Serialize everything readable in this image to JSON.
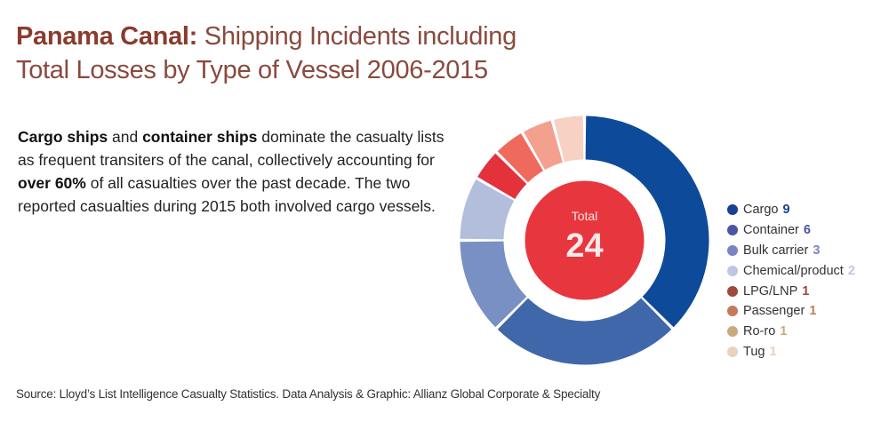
{
  "title": {
    "bold": "Panama Canal:",
    "line1_rest": " Shipping Incidents including",
    "line2": "Total Losses by Type of Vessel 2006-2015"
  },
  "body": {
    "b1": "Cargo ships",
    "t1": " and ",
    "b2": "container ships",
    "t2": " dominate the casualty lists as frequent transiters of the canal, collectively accounting for ",
    "b3": "over 60%",
    "t3": " of all casualties over the past decade. The two reported casualties during 2015 both involved cargo vessels."
  },
  "center": {
    "label": "Total",
    "value": "24",
    "color": "#e8363f"
  },
  "source": "Source: Lloyd’s List Intelligence Casualty Statistics. Data Analysis & Graphic: Allianz Global Corporate & Specialty",
  "chart_data": {
    "type": "pie",
    "subtype": "donut",
    "title": "Panama Canal: Shipping Incidents including Total Losses by Type of Vessel 2006-2015",
    "total": 24,
    "categories": [
      "Cargo",
      "Container",
      "Bulk carrier",
      "Chemical/product",
      "LPG/LNP",
      "Passenger",
      "Ro-ro",
      "Tug"
    ],
    "values": [
      9,
      6,
      3,
      2,
      1,
      1,
      1,
      1
    ],
    "colors": [
      "#0d4a9a",
      "#3f67aa",
      "#7990c4",
      "#b3bedd",
      "#e4323c",
      "#ef6a5c",
      "#f3a08f",
      "#f7d1c3"
    ],
    "legend_colors": [
      "#1a3f96",
      "#4a55a6",
      "#7b84c2",
      "#c2c5e2",
      "#a0483a",
      "#c47a5a",
      "#c9a97f",
      "#e8d2c0"
    ],
    "legend_position": "right"
  }
}
